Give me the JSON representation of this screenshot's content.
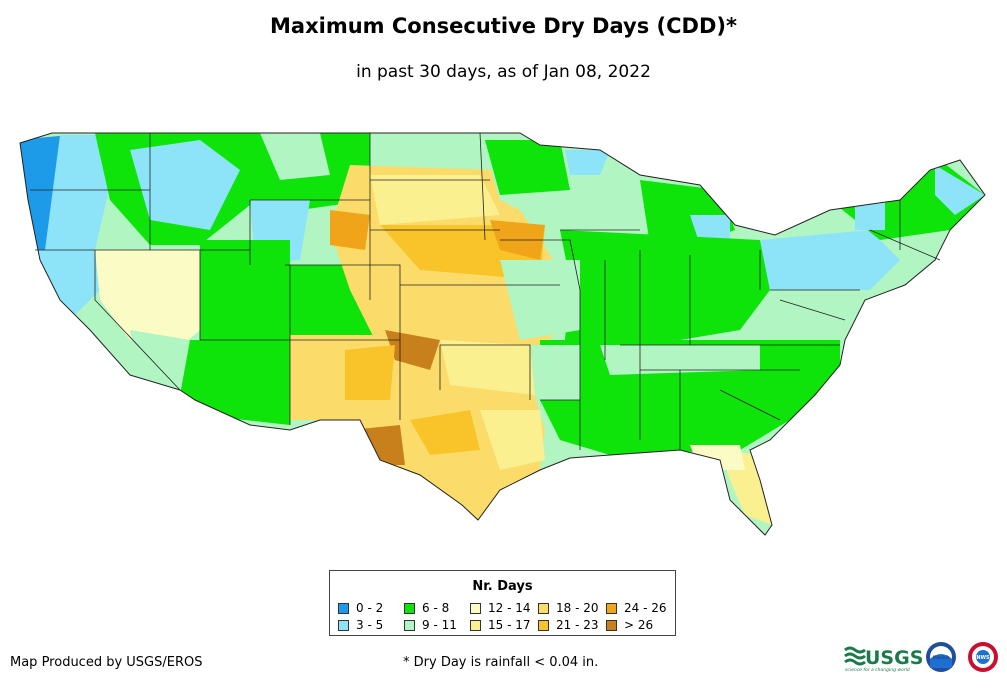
{
  "title": "Maximum Consecutive Dry Days (CDD)*",
  "subtitle": "in past 30 days, as of Jan 08, 2022",
  "legend": {
    "title": "Nr. Days",
    "items": [
      {
        "label": "0 - 2",
        "color": "#1e9be8"
      },
      {
        "label": "3 - 5",
        "color": "#8de3f7"
      },
      {
        "label": "6 - 8",
        "color": "#0ee30a"
      },
      {
        "label": "9 - 11",
        "color": "#b0f5c2"
      },
      {
        "label": "12 - 14",
        "color": "#fbfbc6"
      },
      {
        "label": "15 - 17",
        "color": "#fbf08f"
      },
      {
        "label": "18 - 20",
        "color": "#fbdc6a"
      },
      {
        "label": "21 - 23",
        "color": "#f8c42a"
      },
      {
        "label": "24 - 26",
        "color": "#f0a41a"
      },
      {
        "label": "> 26",
        "color": "#c8801c"
      }
    ]
  },
  "credit": "Map Produced by USGS/EROS",
  "footnote": "* Dry Day is rainfall < 0.04 in.",
  "logos": {
    "usgs_text": "USGS",
    "usgs_tagline": "science for a changing world",
    "noaa_text": "noaa",
    "nws_text": "NWS"
  }
}
